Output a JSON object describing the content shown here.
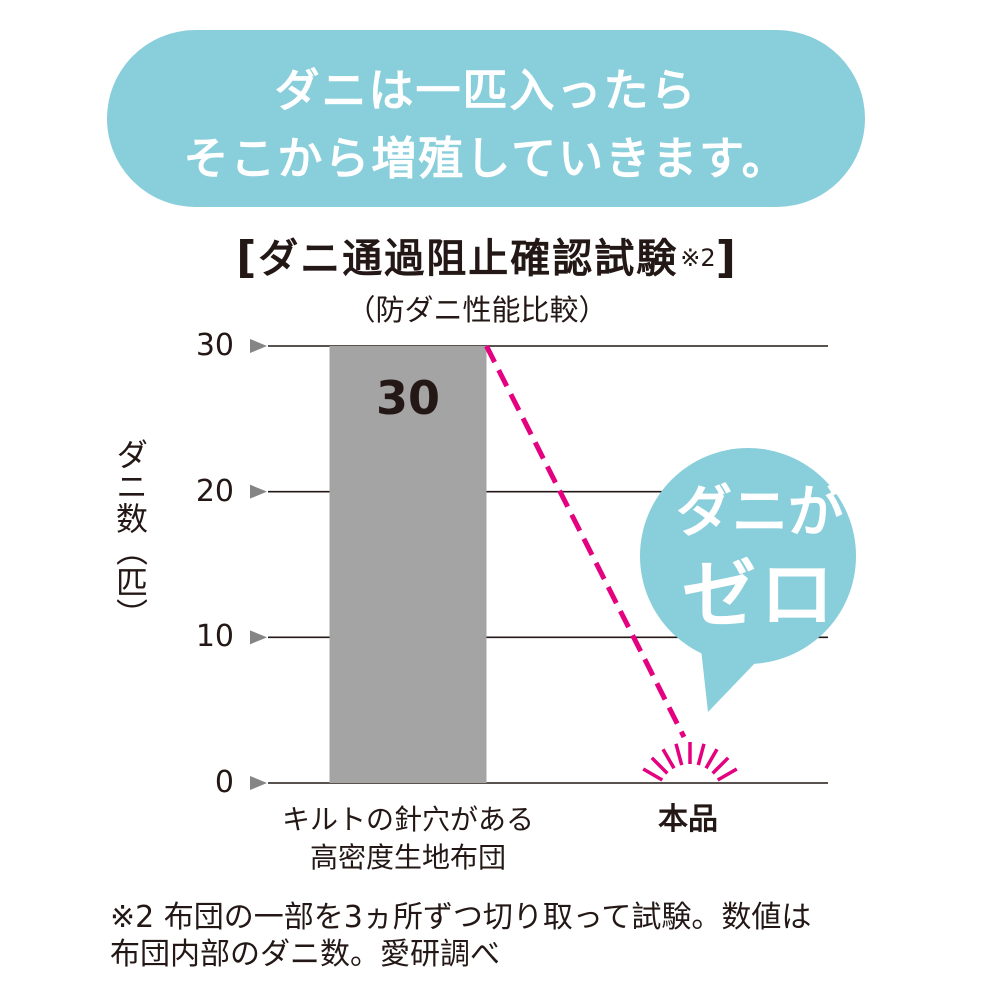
{
  "banner": {
    "lines": [
      "ダニは一匹入ったら",
      "そこから増殖していきます。"
    ]
  },
  "callout": {
    "line1": "ダニが",
    "line2": "ゼロ"
  },
  "footnote": {
    "lines": [
      "※2 布団の一部を3ヵ所ずつ切り取って試験。数値は",
      "布団内部のダニ数。愛研調べ"
    ]
  },
  "colors": {
    "banner_bg": "#89cedb",
    "banner_text": "#ffffff",
    "bubble_bg": "#89cedb",
    "bar": "#a3a4a3",
    "accent": "#e4007f",
    "axis_marker": "#858585",
    "gridline": "#231815",
    "text": "#231815"
  },
  "chart_data": {
    "type": "bar",
    "title_brackets": [
      "[",
      "]"
    ],
    "title": "ダニ通過阻止確認試験",
    "title_note": "※2",
    "subtitle": "（防ダニ性能比較）",
    "ylabel": "ダニ数（匹）",
    "categories": [
      "キルトの針穴がある\n高密度生地布団",
      "本品"
    ],
    "values": [
      30,
      0
    ],
    "ylim": [
      0,
      30
    ],
    "yticks": [
      0,
      10,
      20,
      30
    ],
    "grid": true
  }
}
